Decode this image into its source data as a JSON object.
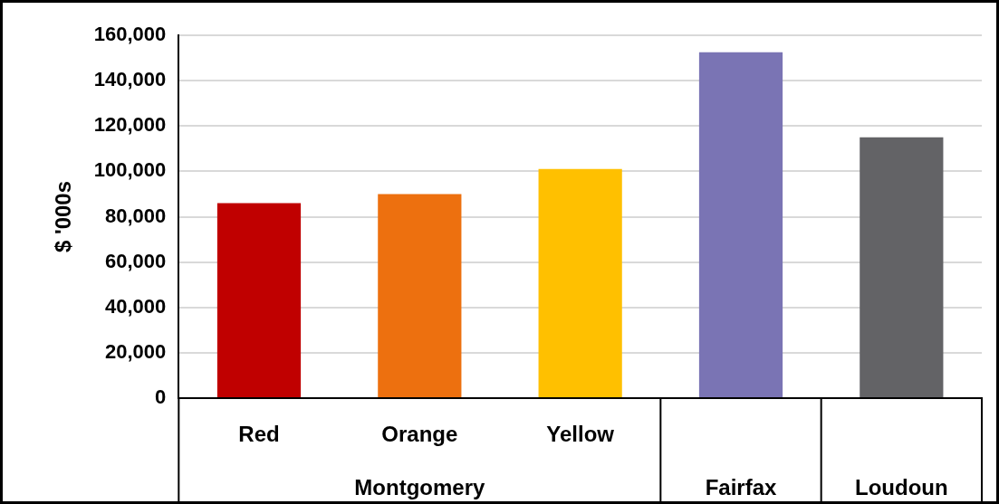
{
  "chart_data": {
    "type": "bar",
    "ylabel": "$ '000s",
    "categories": [
      "Red",
      "Orange",
      "Yellow",
      "Fairfax",
      "Loudoun"
    ],
    "values": [
      86000,
      90000,
      101000,
      152500,
      115000
    ],
    "colors": [
      "#c00000",
      "#ed700f",
      "#ffc000",
      "#7a74b4",
      "#636366"
    ],
    "ylim": [
      0,
      160000
    ],
    "yticks": [
      0,
      {
        "value": 20000,
        "label": "20,000"
      },
      {
        "value": 40000,
        "label": "40,000"
      },
      {
        "value": 60000,
        "label": "60,000"
      },
      {
        "value": 80000,
        "label": "80,000"
      },
      {
        "value": 100000,
        "label": "100,000"
      },
      {
        "value": 120000,
        "label": "120,000"
      },
      {
        "value": 140000,
        "label": "140,000"
      },
      {
        "value": 160000,
        "label": "160,000"
      }
    ],
    "grid": "y",
    "annotations": [
      "Montgomery"
    ]
  }
}
